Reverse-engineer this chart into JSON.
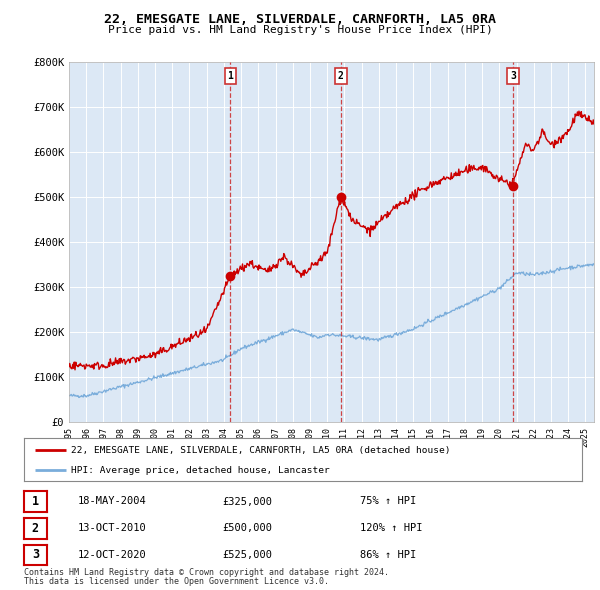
{
  "title": "22, EMESGATE LANE, SILVERDALE, CARNFORTH, LA5 0RA",
  "subtitle": "Price paid vs. HM Land Registry's House Price Index (HPI)",
  "ylim": [
    0,
    800000
  ],
  "yticks": [
    0,
    100000,
    200000,
    300000,
    400000,
    500000,
    600000,
    700000,
    800000
  ],
  "ytick_labels": [
    "£0",
    "£100K",
    "£200K",
    "£300K",
    "£400K",
    "£500K",
    "£600K",
    "£700K",
    "£800K"
  ],
  "fig_bg": "#ffffff",
  "plot_bg": "#dce8f5",
  "line1_color": "#cc0000",
  "line2_color": "#7aaddb",
  "vline_color": "#cc3333",
  "sale_points": [
    {
      "year": 2004.38,
      "price": 325000,
      "label": "1"
    },
    {
      "year": 2010.79,
      "price": 500000,
      "label": "2"
    },
    {
      "year": 2020.79,
      "price": 525000,
      "label": "3"
    }
  ],
  "transactions": [
    {
      "num": "1",
      "date": "18-MAY-2004",
      "price": "£325,000",
      "hpi": "75% ↑ HPI"
    },
    {
      "num": "2",
      "date": "13-OCT-2010",
      "price": "£500,000",
      "hpi": "120% ↑ HPI"
    },
    {
      "num": "3",
      "date": "12-OCT-2020",
      "price": "£525,000",
      "hpi": "86% ↑ HPI"
    }
  ],
  "legend1": "22, EMESGATE LANE, SILVERDALE, CARNFORTH, LA5 0RA (detached house)",
  "legend2": "HPI: Average price, detached house, Lancaster",
  "footer1": "Contains HM Land Registry data © Crown copyright and database right 2024.",
  "footer2": "This data is licensed under the Open Government Licence v3.0."
}
